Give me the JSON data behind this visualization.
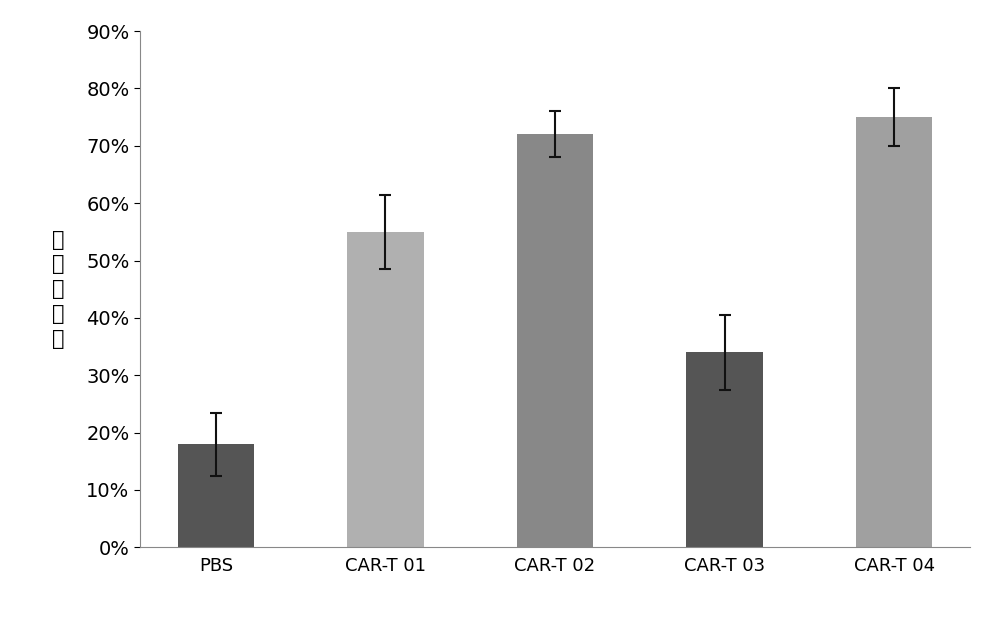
{
  "categories": [
    "PBS",
    "CAR-T 01",
    "CAR-T 02",
    "CAR-T 03",
    "CAR-T 04"
  ],
  "values": [
    0.18,
    0.55,
    0.72,
    0.34,
    0.75
  ],
  "errors": [
    0.055,
    0.065,
    0.04,
    0.065,
    0.05
  ],
  "bar_colors": [
    "#555555",
    "#b0b0b0",
    "#888888",
    "#555555",
    "#a0a0a0"
  ],
  "ylabel": "细胞杀伤率",
  "ylim": [
    0,
    0.9
  ],
  "yticks": [
    0.0,
    0.1,
    0.2,
    0.3,
    0.4,
    0.5,
    0.6,
    0.7,
    0.8,
    0.9
  ],
  "background_color": "#ffffff",
  "bar_width": 0.45,
  "ylabel_fontsize": 15,
  "tick_fontsize": 14,
  "xlabel_fontsize": 13,
  "error_capsize": 4,
  "error_linewidth": 1.5,
  "error_color": "#111111"
}
